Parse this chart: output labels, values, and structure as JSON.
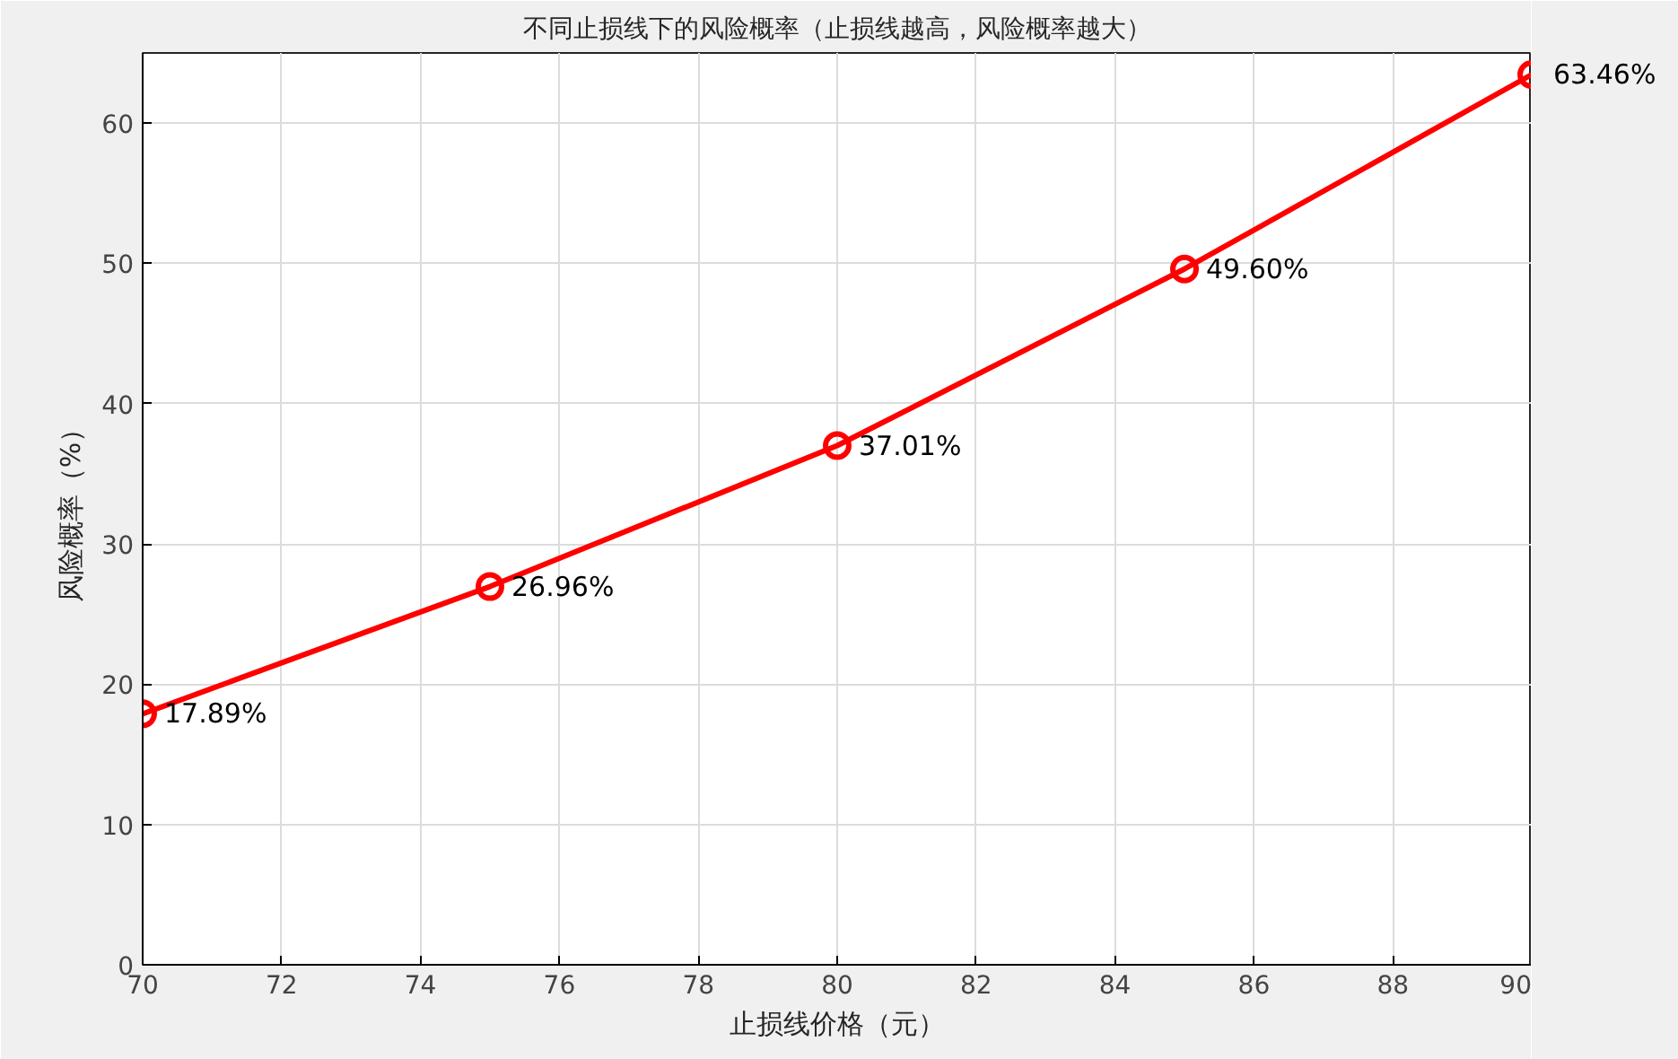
{
  "chart_data": {
    "type": "line",
    "title": "不同止损线下的风险概率（止损线越高，风险概率越大）",
    "xlabel": "止损线价格（元）",
    "ylabel": "风险概率（%）",
    "x": [
      70,
      75,
      80,
      85,
      90
    ],
    "series": [
      {
        "color": "#ff0000",
        "values": [
          17.89,
          26.96,
          37.01,
          49.6,
          63.46
        ],
        "value_labels": [
          "17.89%",
          "26.96%",
          "37.01%",
          "49.60%",
          "63.46%"
        ]
      }
    ],
    "xlim": [
      70,
      90
    ],
    "xticks": [
      70,
      72,
      74,
      76,
      78,
      80,
      82,
      84,
      86,
      88,
      90
    ],
    "ylim": [
      0,
      65
    ],
    "yticks": [
      0,
      10,
      20,
      30,
      40,
      50,
      60
    ],
    "grid": true,
    "marker": "circle",
    "line_style": "solid"
  }
}
